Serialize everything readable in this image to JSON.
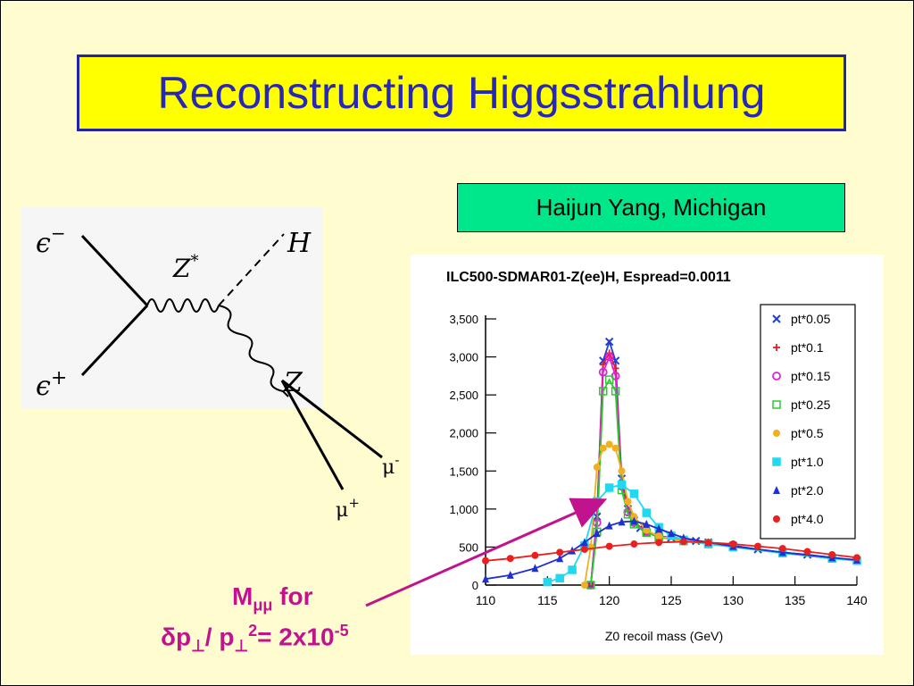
{
  "slide": {
    "title": "Reconstructing Higgsstrahlung",
    "author": "Haijun Yang, Michigan",
    "annotation_line1_main": "M",
    "annotation_line1_sub": "μμ",
    "annotation_line1_rest": " for",
    "annotation_line2": {
      "delta": "δ",
      "p1": "p",
      "perp1": "⊥",
      "slash": "/ p",
      "perp2": "⊥",
      "sup2": "2",
      "eq": "= 2x10",
      "exp": "-5"
    },
    "colors": {
      "background": "#fffcd0",
      "title_box": "#ffff00",
      "title_text": "#2727b8",
      "author_box": "#00e68a",
      "annotation": "#c2138e"
    }
  },
  "feynman": {
    "electron": "ϵ",
    "electron_sign": "−",
    "positron": "ϵ",
    "positron_sign": "+",
    "zstar": "Z",
    "zstar_sup": "*",
    "higgs": "H",
    "z": "Z",
    "mu_minus": "μ",
    "mu_minus_sign": "-",
    "mu_plus": "μ",
    "mu_plus_sign": "+"
  },
  "chart_data": {
    "type": "scatter",
    "title": "ILC500-SDMAR01-Z(ee)H, Espread=0.0011",
    "xlabel": "Z0 recoil mass (GeV)",
    "ylabel": "",
    "xlim": [
      110,
      140
    ],
    "ylim": [
      0,
      3500
    ],
    "xticks": [
      110,
      115,
      120,
      125,
      130,
      135,
      140
    ],
    "xtick_labels": [
      "110",
      "115",
      "120",
      "125",
      "130",
      "135",
      "140"
    ],
    "yticks": [
      0,
      500,
      1000,
      1500,
      2000,
      2500,
      3000,
      3500
    ],
    "ytick_labels": [
      "0",
      "500",
      "1,000",
      "1,500",
      "2,000",
      "2,500",
      "3,000",
      "3,500"
    ],
    "legend_position": "top-right",
    "series": [
      {
        "name": "pt*0.05",
        "color": "#1f3fd6",
        "marker": "x",
        "x": [
          118.5,
          119,
          119.5,
          120,
          120.5,
          121,
          121.5,
          122,
          122.5,
          123,
          124,
          125,
          126,
          127,
          128,
          130,
          132,
          134,
          136,
          138,
          140
        ],
        "y": [
          0,
          900,
          2950,
          3200,
          2950,
          1400,
          1000,
          850,
          750,
          700,
          650,
          620,
          600,
          580,
          560,
          520,
          470,
          430,
          400,
          360,
          320
        ]
      },
      {
        "name": "pt*0.1",
        "color": "#e0202a",
        "marker": "plus",
        "x": [
          118.5,
          119,
          119.5,
          120,
          120.5,
          121,
          121.5,
          122,
          123,
          124,
          126,
          128,
          130,
          134,
          138
        ],
        "y": [
          0,
          850,
          2900,
          3050,
          2850,
          1350,
          980,
          830,
          700,
          640,
          590,
          550,
          510,
          420,
          350
        ]
      },
      {
        "name": "pt*0.15",
        "color": "#e020e0",
        "marker": "circle",
        "x": [
          118.5,
          119,
          119.5,
          120,
          120.5,
          121,
          121.5,
          122,
          123,
          124,
          126,
          128,
          130,
          134,
          138
        ],
        "y": [
          0,
          820,
          2800,
          3000,
          2750,
          1300,
          960,
          820,
          700,
          640,
          590,
          550,
          510,
          420,
          350
        ]
      },
      {
        "name": "pt*0.25",
        "color": "#2ec82e",
        "marker": "square",
        "x": [
          118.5,
          119,
          119.5,
          120,
          120.5,
          121,
          121.5,
          122,
          123,
          124,
          126,
          128,
          130,
          134,
          138
        ],
        "y": [
          0,
          700,
          2550,
          2700,
          2550,
          1250,
          930,
          800,
          690,
          630,
          580,
          540,
          500,
          420,
          350
        ]
      },
      {
        "name": "pt*0.5",
        "color": "#f0b020",
        "marker": "dot",
        "x": [
          118,
          118.5,
          119,
          119.5,
          120,
          120.5,
          121,
          121.5,
          122,
          123,
          124,
          126,
          128,
          130,
          134,
          138
        ],
        "y": [
          0,
          500,
          1550,
          1800,
          1850,
          1800,
          1500,
          1100,
          900,
          720,
          640,
          580,
          540,
          500,
          420,
          350
        ]
      },
      {
        "name": "pt*1.0",
        "color": "#20d8f0",
        "marker": "square",
        "x": [
          115,
          116,
          117,
          118,
          119,
          120,
          121,
          122,
          123,
          124,
          125,
          126,
          128,
          130,
          134,
          138,
          140
        ],
        "y": [
          40,
          90,
          200,
          520,
          1100,
          1280,
          1320,
          1200,
          950,
          760,
          650,
          590,
          540,
          500,
          420,
          350,
          320
        ]
      },
      {
        "name": "pt*2.0",
        "color": "#2030d0",
        "marker": "triangle",
        "x": [
          110,
          112,
          114,
          116,
          117,
          118,
          119,
          120,
          121,
          122,
          123,
          124,
          125,
          126,
          128,
          130,
          134,
          138,
          140
        ],
        "y": [
          80,
          130,
          220,
          350,
          450,
          560,
          680,
          780,
          830,
          840,
          800,
          740,
          680,
          620,
          560,
          510,
          430,
          360,
          330
        ]
      },
      {
        "name": "pt*4.0",
        "color": "#e82020",
        "marker": "dot",
        "x": [
          110,
          112,
          114,
          116,
          118,
          120,
          122,
          124,
          126,
          128,
          130,
          132,
          134,
          136,
          138,
          140
        ],
        "y": [
          320,
          350,
          390,
          430,
          470,
          510,
          540,
          560,
          570,
          560,
          540,
          510,
          480,
          440,
          400,
          360
        ]
      }
    ]
  }
}
